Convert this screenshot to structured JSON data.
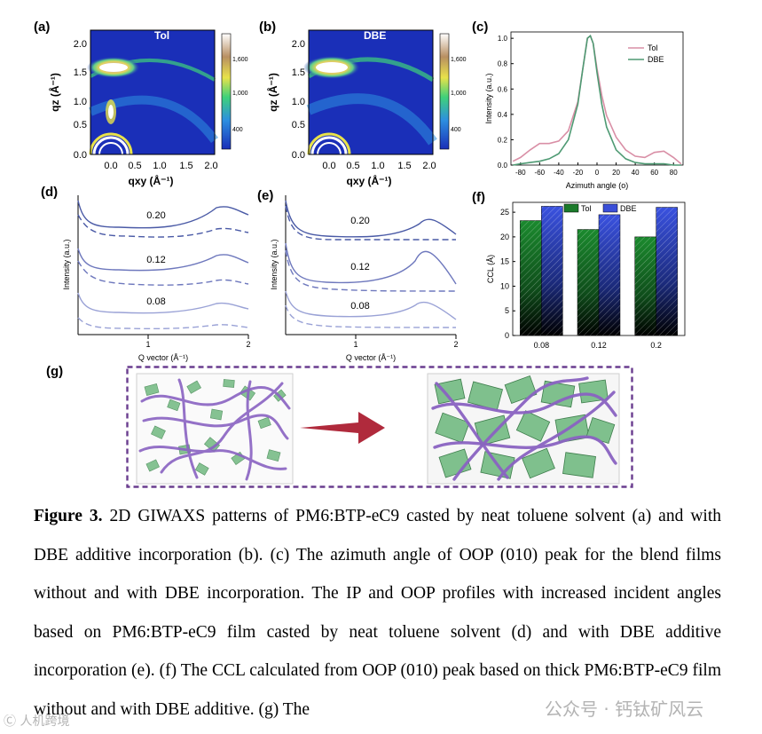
{
  "panels": {
    "a": {
      "label": "(a)",
      "title": "Tol",
      "xlabel": "qxy (Å⁻¹)",
      "ylabel": "qz (Å⁻¹)",
      "xticks": [
        "0.0",
        "0.5",
        "1.0",
        "1.5",
        "2.0"
      ],
      "yticks": [
        "0.0",
        "0.5",
        "1.0",
        "1.5",
        "2.0"
      ],
      "cbar_ticks": [
        "1,600",
        "1,000",
        "400"
      ]
    },
    "b": {
      "label": "(b)",
      "title": "DBE",
      "xlabel": "qxy (Å⁻¹)",
      "ylabel": "qz (Å⁻¹)",
      "xticks": [
        "0.0",
        "0.5",
        "1.0",
        "1.5",
        "2.0"
      ],
      "yticks": [
        "0.0",
        "0.5",
        "1.0",
        "1.5",
        "2.0"
      ],
      "cbar_ticks": [
        "1,600",
        "1,000",
        "400"
      ]
    },
    "c": {
      "label": "(c)"
    },
    "d": {
      "label": "(d)",
      "xlabel": "Q vector (Å⁻¹)",
      "ylabel": "Intensity (a.u.)",
      "xticks": [
        "1",
        "2"
      ],
      "curve_labels": [
        "0.20",
        "0.12",
        "0.08"
      ]
    },
    "e": {
      "label": "(e)",
      "xlabel": "Q vector (Å⁻¹)",
      "ylabel": "Intensity (a.u.)",
      "xticks": [
        "1",
        "2"
      ],
      "curve_labels": [
        "0.20",
        "0.12",
        "0.08"
      ]
    },
    "f": {
      "label": "(f)"
    },
    "g": {
      "label": "(g)"
    }
  },
  "chart_data": [
    {
      "id": "c",
      "type": "line",
      "title": "",
      "xlabel": "Azimuth angle (o)",
      "ylabel": "Intensity (a.u.)",
      "xlim": [
        -90,
        90
      ],
      "ylim": [
        0,
        1.05
      ],
      "xticks": [
        -80,
        -60,
        -40,
        -20,
        0,
        20,
        40,
        60,
        80
      ],
      "yticks": [
        0.0,
        0.2,
        0.4,
        0.6,
        0.8,
        1.0
      ],
      "series": [
        {
          "name": "Tol",
          "color": "#d98fa6",
          "x": [
            -88,
            -80,
            -70,
            -60,
            -50,
            -40,
            -30,
            -20,
            -15,
            -10,
            -7,
            -4,
            0,
            5,
            10,
            20,
            30,
            40,
            50,
            60,
            70,
            80,
            88
          ],
          "y": [
            0.03,
            0.06,
            0.12,
            0.17,
            0.17,
            0.19,
            0.27,
            0.5,
            0.75,
            1.0,
            1.02,
            0.96,
            0.76,
            0.55,
            0.39,
            0.22,
            0.12,
            0.07,
            0.06,
            0.1,
            0.11,
            0.06,
            0.01
          ]
        },
        {
          "name": "DBE",
          "color": "#4e9a73",
          "x": [
            -88,
            -80,
            -70,
            -60,
            -50,
            -40,
            -30,
            -20,
            -15,
            -10,
            -7,
            -4,
            0,
            5,
            10,
            20,
            30,
            40,
            50,
            60,
            70,
            80,
            88
          ],
          "y": [
            0.0,
            0.01,
            0.02,
            0.03,
            0.05,
            0.09,
            0.2,
            0.48,
            0.75,
            1.0,
            1.02,
            0.96,
            0.73,
            0.48,
            0.3,
            0.12,
            0.05,
            0.02,
            0.01,
            0.01,
            0.01,
            0.0,
            0.0
          ]
        }
      ]
    },
    {
      "id": "f",
      "type": "bar",
      "title": "",
      "xlabel": "",
      "ylabel": "CCL (Å)",
      "categories": [
        "0.08",
        "0.12",
        "0.2"
      ],
      "ylim": [
        0,
        27
      ],
      "yticks": [
        0,
        5,
        10,
        15,
        20,
        25
      ],
      "series": [
        {
          "name": "Tol",
          "color": "#1b7a2a",
          "values": [
            23.3,
            21.5,
            20.0
          ]
        },
        {
          "name": "DBE",
          "color": "#3a4fd8",
          "values": [
            26.2,
            24.5,
            26.0
          ]
        }
      ]
    }
  ],
  "caption": {
    "figure_label": "Figure 3.",
    "text": "2D GIWAXS patterns of PM6:BTP-eC9 casted by neat toluene solvent (a) and with DBE additive incorporation (b). (c) The azimuth angle of OOP (010) peak for the blend films without and with DBE incorporation. The IP and OOP profiles with increased incident angles based on PM6:BTP-eC9 film casted by neat toluene solvent (d) and with DBE additive incorporation (e). (f) The CCL calculated from OOP (010) peak based on thick PM6:BTP-eC9 film without and with DBE additive. (g) The"
  },
  "watermarks": {
    "right": "公众号 · 钙钛矿风云",
    "left": "Ⓒ 人机跨境"
  },
  "colors": {
    "heatmap_bg": "#1a2fb8",
    "arrow": "#b02a3c",
    "frame": "#6a3d8f",
    "fiber": "#8a63c2",
    "crystal": "#7fc08d"
  }
}
